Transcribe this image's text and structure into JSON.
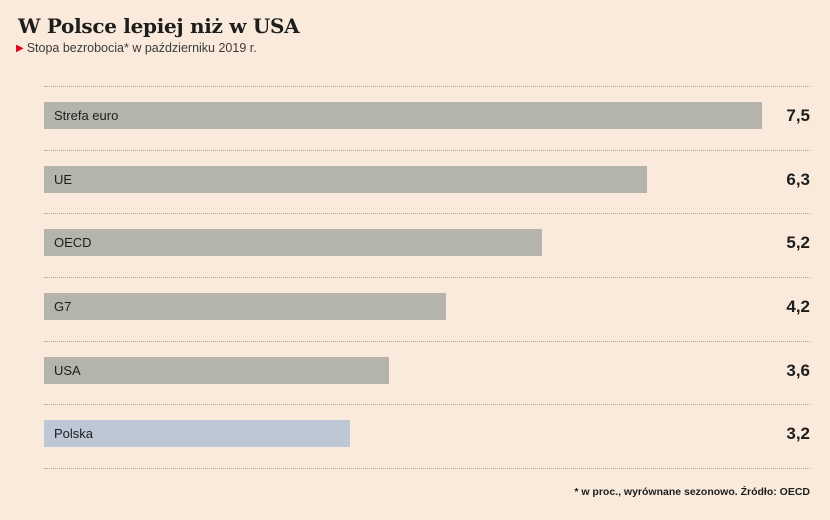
{
  "header": {
    "title": "W Polsce lepiej niż w USA",
    "subtitle_marker": "▶",
    "subtitle": "Stopa bezrobocia* w październiku 2019 r."
  },
  "chart_data": {
    "type": "bar",
    "orientation": "horizontal",
    "title": "W Polsce lepiej niż w USA",
    "subtitle": "Stopa bezrobocia* w październiku 2019 r.",
    "categories": [
      "Strefa euro",
      "UE",
      "OECD",
      "G7",
      "USA",
      "Polska"
    ],
    "values": [
      7.5,
      6.3,
      5.2,
      4.2,
      3.6,
      3.2
    ],
    "value_labels": [
      "7,5",
      "6,3",
      "5,2",
      "4,2",
      "3,6",
      "3,2"
    ],
    "unit": "percent",
    "xlim": [
      0,
      8
    ],
    "grid": "dotted horizontal row separators",
    "legend": "none",
    "highlight_category": "Polska"
  },
  "colors": {
    "background": "#f9eadc",
    "bar_default": "#b4b4ac",
    "bar_highlight": "#bec7d5",
    "separator": "#b3a193",
    "accent_red": "#e2001a",
    "text": "#1d1d1b"
  },
  "footer": {
    "note": "* w proc., wyrównane sezonowo. Źródło: OECD"
  }
}
